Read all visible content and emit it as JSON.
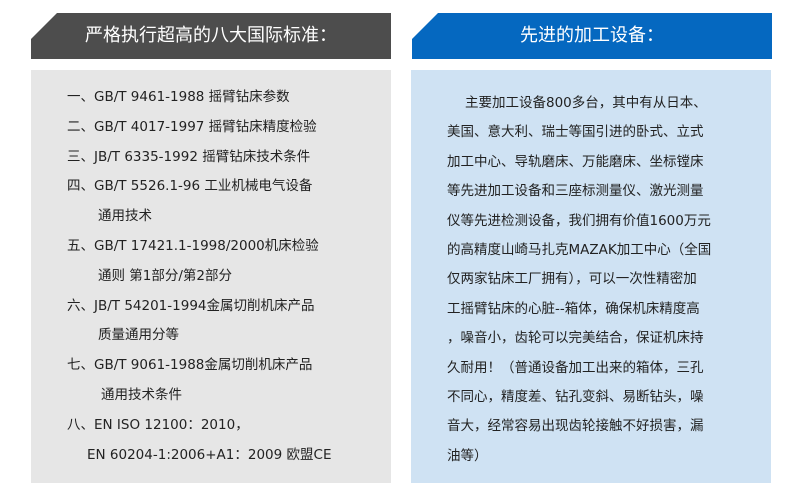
{
  "left": {
    "title": "严格执行超高的八大国际标准：",
    "lines": [
      "一、GB/T 9461-1988 摇臂钻床参数",
      "二、GB/T 4017-1997 摇臂钻床精度检验",
      "三、JB/T 6335-1992 摇臂钻床技术条件",
      "四、GB/T 5526.1-96 工业机械电气设备",
      "通用技术",
      "五、GB/T 17421.1-1998/2000机床检验",
      "通则 第1部分/第2部分",
      "六、JB/T 54201-1994金属切削机床产品",
      "质量通用分等",
      "七、GB/T 9061-1988金属切削机床产品",
      "通用技术条件",
      "八、EN ISO 12100：2010，",
      "EN 60204-1:2006+A1：2009 欧盟CE"
    ]
  },
  "right": {
    "title": "先进的加工设备：",
    "lines": [
      "主要加工设备800多台，其中有从日本、",
      "美国、意大利、瑞士等国引进的卧式、立式",
      "加工中心、导轨磨床、万能磨床、坐标镗床",
      "等先进加工设备和三座标测量仪、激光测量",
      "仪等先进检测设备，我们拥有价值1600万元",
      "的高精度山崎马扎克MAZAK加工中心（全国",
      "仅两家钻床工厂拥有），可以一次性精密加",
      "工摇臂钻床的心脏--箱体，确保机床精度高",
      "，噪音小，齿轮可以完美结合，保证机床持",
      "久耐用！（普通设备加工出来的箱体，三孔",
      "不同心，精度差、钻孔变斜、易断钻头，噪",
      "音大，经常容易出现齿轮接触不好损害，漏",
      "油等）"
    ]
  },
  "colors": {
    "left_header": "#4d4d4d",
    "left_body": "#e6e6e6",
    "right_header": "#0568c0",
    "right_body": "#cfe2f3"
  }
}
